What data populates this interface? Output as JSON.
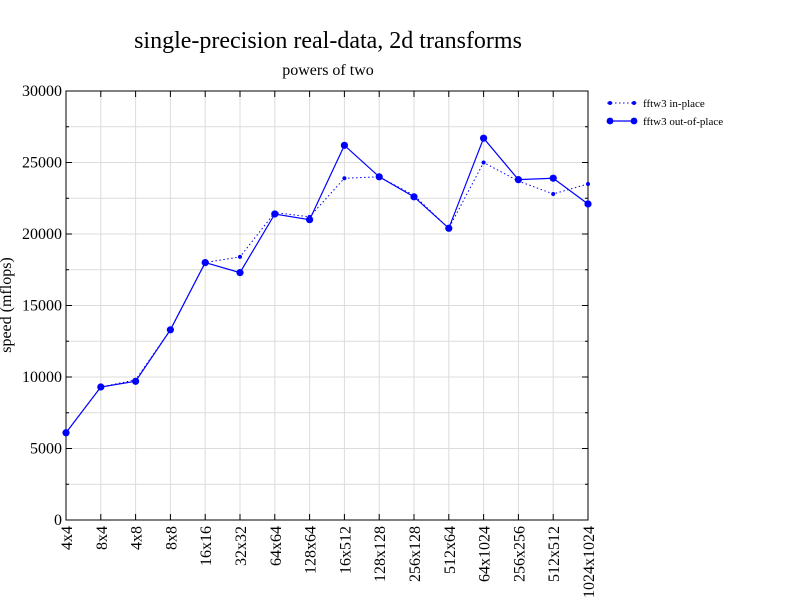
{
  "chart_data": {
    "type": "line",
    "title": "single-precision real-data, 2d transforms",
    "subtitle": "powers of two",
    "xlabel": "",
    "ylabel": "speed (mflops)",
    "ylim": [
      0,
      30000
    ],
    "yticks": [
      "0",
      "5000",
      "10000",
      "15000",
      "20000",
      "25000",
      "30000"
    ],
    "categories": [
      "4x4",
      "8x4",
      "4x8",
      "8x8",
      "16x16",
      "32x32",
      "64x64",
      "128x64",
      "16x512",
      "128x128",
      "256x128",
      "512x64",
      "64x1024",
      "256x256",
      "512x512",
      "1024x1024"
    ],
    "grid": true,
    "legend_position": "top-right",
    "series": [
      {
        "name": "fftw3 in-place",
        "style": "dotted",
        "color": "#0000ff",
        "values": [
          6100,
          9300,
          9800,
          13300,
          18000,
          18400,
          21500,
          21200,
          23900,
          24000,
          22700,
          20400,
          25000,
          23700,
          22800,
          23500
        ]
      },
      {
        "name": "fftw3 out-of-place",
        "style": "solid",
        "color": "#0000ff",
        "values": [
          6100,
          9300,
          9700,
          13300,
          18000,
          17300,
          21400,
          21000,
          26200,
          24000,
          22600,
          20400,
          26700,
          23800,
          23900,
          22100
        ]
      }
    ]
  }
}
